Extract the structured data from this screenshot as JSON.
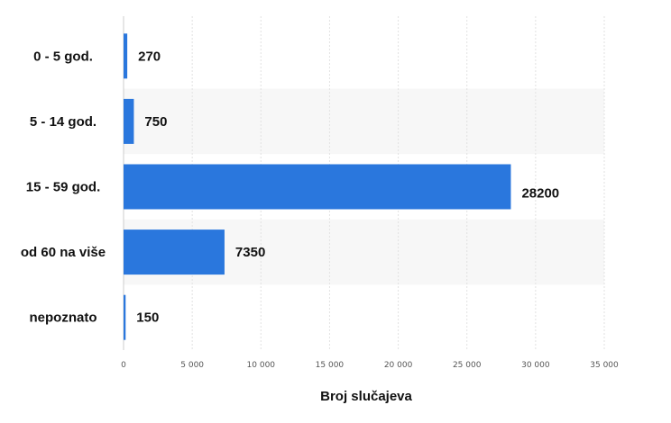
{
  "chart_data": {
    "type": "bar",
    "orientation": "horizontal",
    "categories": [
      "0 - 5 god.",
      "5 - 14 god.",
      "15 - 59 god.",
      "od 60 na više",
      "nepoznato"
    ],
    "values": [
      270,
      750,
      28200,
      7350,
      150
    ],
    "value_labels": [
      "270",
      "750",
      "28200",
      "7350",
      "150"
    ],
    "xlabel": "Broj slučajeva",
    "ylabel": "",
    "xlim": [
      0,
      35000
    ],
    "ticks": [
      0,
      5000,
      10000,
      15000,
      20000,
      25000,
      30000,
      35000
    ],
    "tick_labels": [
      "0",
      "5 000",
      "10 000",
      "15 000",
      "20 000",
      "25 000",
      "30 000",
      "35 000"
    ],
    "grid": true,
    "legend": "none",
    "colors": {
      "bar": "#2a77dd",
      "band": "#f7f7f7",
      "grid": "#e2e2e2"
    }
  }
}
